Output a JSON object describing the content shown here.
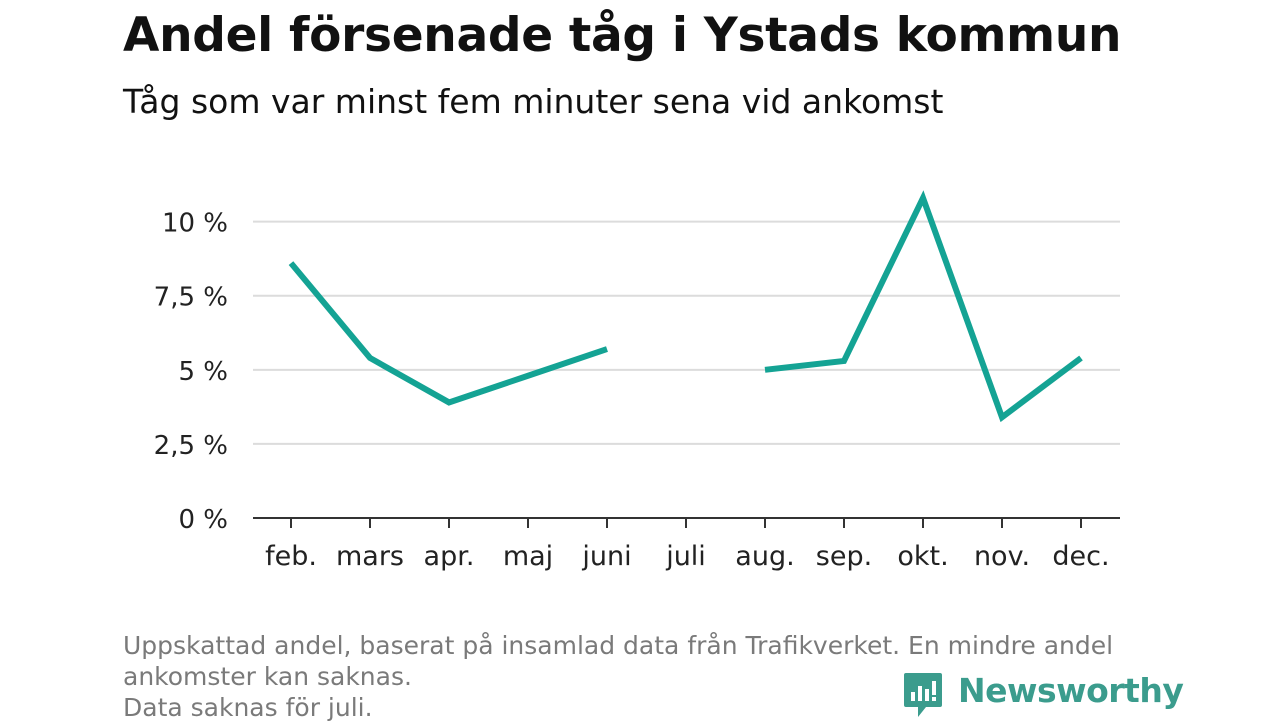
{
  "header": {
    "title": "Andel försenade tåg i Ystads kommun",
    "subtitle": "Tåg som var minst fem minuter sena vid ankomst"
  },
  "footnote": {
    "line1": "Uppskattad andel, baserat på insamlad data från Trafikverket. En mindre andel",
    "line2": "ankomster kan saknas.",
    "line3": "Data saknas för juli."
  },
  "brand": {
    "name": "Newsworthy",
    "logo_icon": "newsworthy-bar-chart-icon",
    "color": "#3b9c8d"
  },
  "colors": {
    "line": "#14a394",
    "grid": "#dcdcdc",
    "axis": "#333333"
  },
  "chart_data": {
    "type": "line",
    "title": "Andel försenade tåg i Ystads kommun",
    "subtitle": "Tåg som var minst fem minuter sena vid ankomst",
    "xlabel": "",
    "ylabel": "",
    "categories": [
      "feb.",
      "mars",
      "apr.",
      "maj",
      "juni",
      "juli",
      "aug.",
      "sep.",
      "okt.",
      "nov.",
      "dec."
    ],
    "series": [
      {
        "values": [
          8.6,
          5.4,
          3.9,
          4.8,
          5.7,
          null,
          5.0,
          5.3,
          10.8,
          3.4,
          5.4
        ]
      }
    ],
    "ylim": [
      0,
      11
    ],
    "yticks": [
      0,
      2.5,
      5,
      7.5,
      10
    ],
    "ytick_labels": [
      "0 %",
      "2,5 %",
      "5 %",
      "7,5 %",
      "10 %"
    ],
    "grid": true,
    "legend": "none"
  }
}
